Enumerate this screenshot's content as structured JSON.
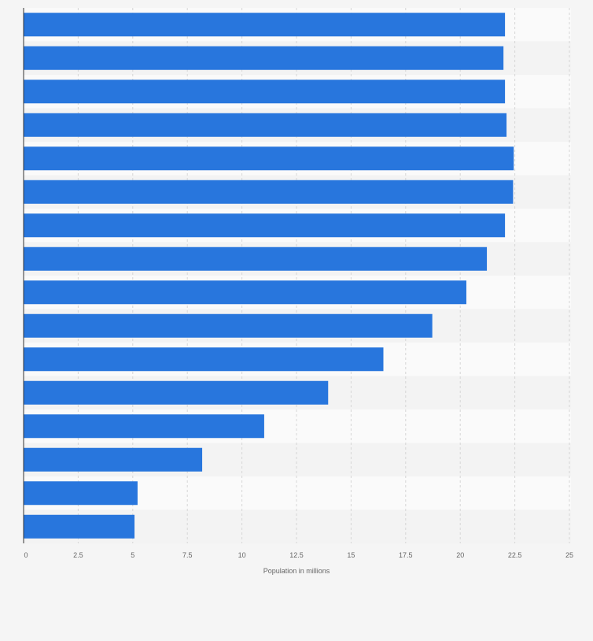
{
  "chart_data": {
    "type": "bar",
    "orientation": "horizontal",
    "xlabel": "Population in millions",
    "xlim": [
      0,
      25
    ],
    "xticks": [
      "0",
      "2.5",
      "5",
      "7.5",
      "10",
      "12.5",
      "15",
      "17.5",
      "20",
      "22.5",
      "25"
    ],
    "grid": true,
    "values": [
      22.05,
      21.98,
      22.05,
      22.12,
      22.45,
      22.42,
      22.05,
      21.22,
      20.28,
      18.72,
      16.48,
      13.95,
      11.02,
      8.18,
      5.22,
      5.08
    ],
    "bar_color": "#2876dd"
  }
}
